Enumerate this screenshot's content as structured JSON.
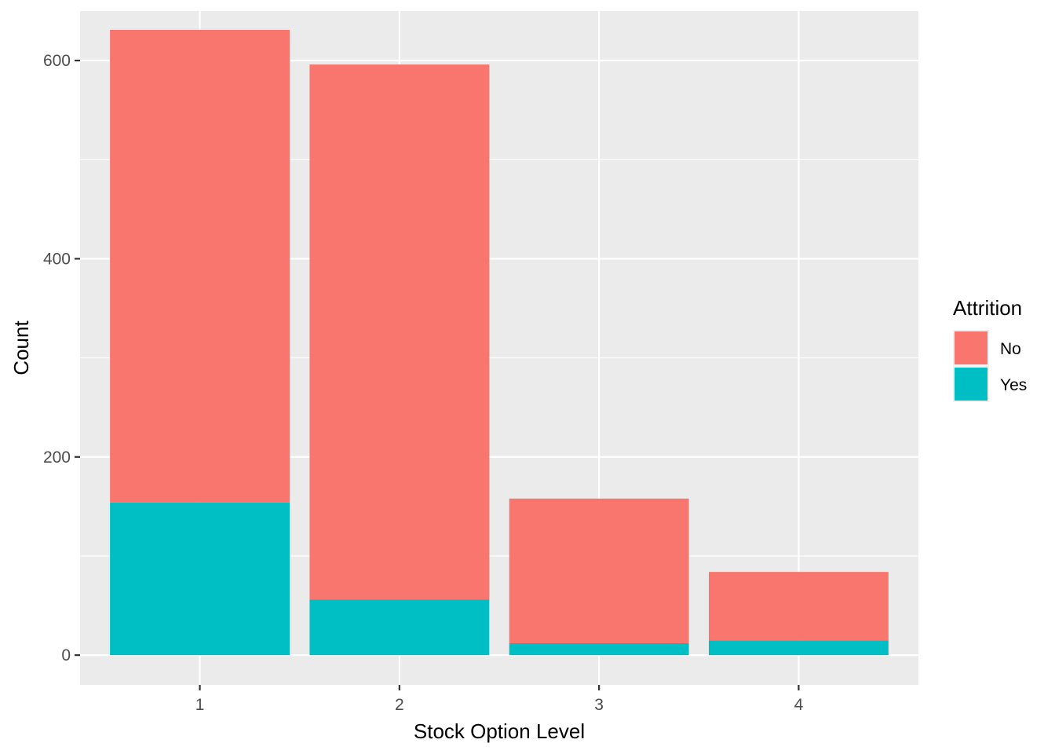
{
  "chart_data": {
    "type": "bar",
    "stacked": true,
    "categories": [
      "1",
      "2",
      "3",
      "4"
    ],
    "series": [
      {
        "name": "No",
        "values": [
          477,
          540,
          146,
          69
        ]
      },
      {
        "name": "Yes",
        "values": [
          154,
          56,
          12,
          15
        ]
      }
    ],
    "colors": {
      "No": "#F8766D",
      "Yes": "#00BFC4"
    },
    "xlabel": "Stock Option Level",
    "ylabel": "Count",
    "ylim": [
      -30,
      650
    ],
    "yticks": [
      0,
      200,
      400,
      600
    ],
    "grid": true,
    "legend": {
      "title": "Attrition",
      "position": "right",
      "entries": [
        "No",
        "Yes"
      ]
    },
    "panel_background": "#EBEBEB"
  }
}
